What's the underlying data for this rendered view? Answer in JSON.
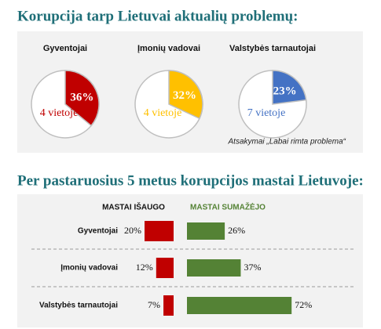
{
  "sections": [
    {
      "title": "Korupcija tarp Lietuvai aktualių problemų:",
      "note": "Atsakymai „Labai rimta problema“"
    },
    {
      "title": "Per pastaruosius 5 metus korupcijos mastai Lietuvoje:"
    }
  ],
  "chart_data": [
    {
      "type": "pie",
      "title": "Gyventojai",
      "values": [
        36
      ],
      "value_labels": [
        "36%"
      ],
      "color": "#c00000",
      "annotation": "4 vietoje"
    },
    {
      "type": "pie",
      "title": "Įmonių vadovai",
      "values": [
        32
      ],
      "value_labels": [
        "32%"
      ],
      "color": "#ffc000",
      "annotation": "4 vietoje"
    },
    {
      "type": "pie",
      "title": "Valstybės tarnautojai",
      "values": [
        23
      ],
      "value_labels": [
        "23%"
      ],
      "color": "#4472c4",
      "annotation": "7 vietoje"
    },
    {
      "type": "diverging-bar",
      "categories": [
        "Gyventojai",
        "Įmonių vadovai",
        "Valstybės tarnautojai"
      ],
      "series": [
        {
          "name": "MASTAI IŠAUGO",
          "color": "#c00000",
          "values": [
            20,
            12,
            7
          ],
          "value_labels": [
            "20%",
            "12%",
            "7%"
          ]
        },
        {
          "name": "MASTAI SUMAŽĖJO",
          "color": "#548235",
          "values": [
            26,
            37,
            72
          ],
          "value_labels": [
            "26%",
            "37%",
            "72%"
          ]
        }
      ]
    }
  ]
}
